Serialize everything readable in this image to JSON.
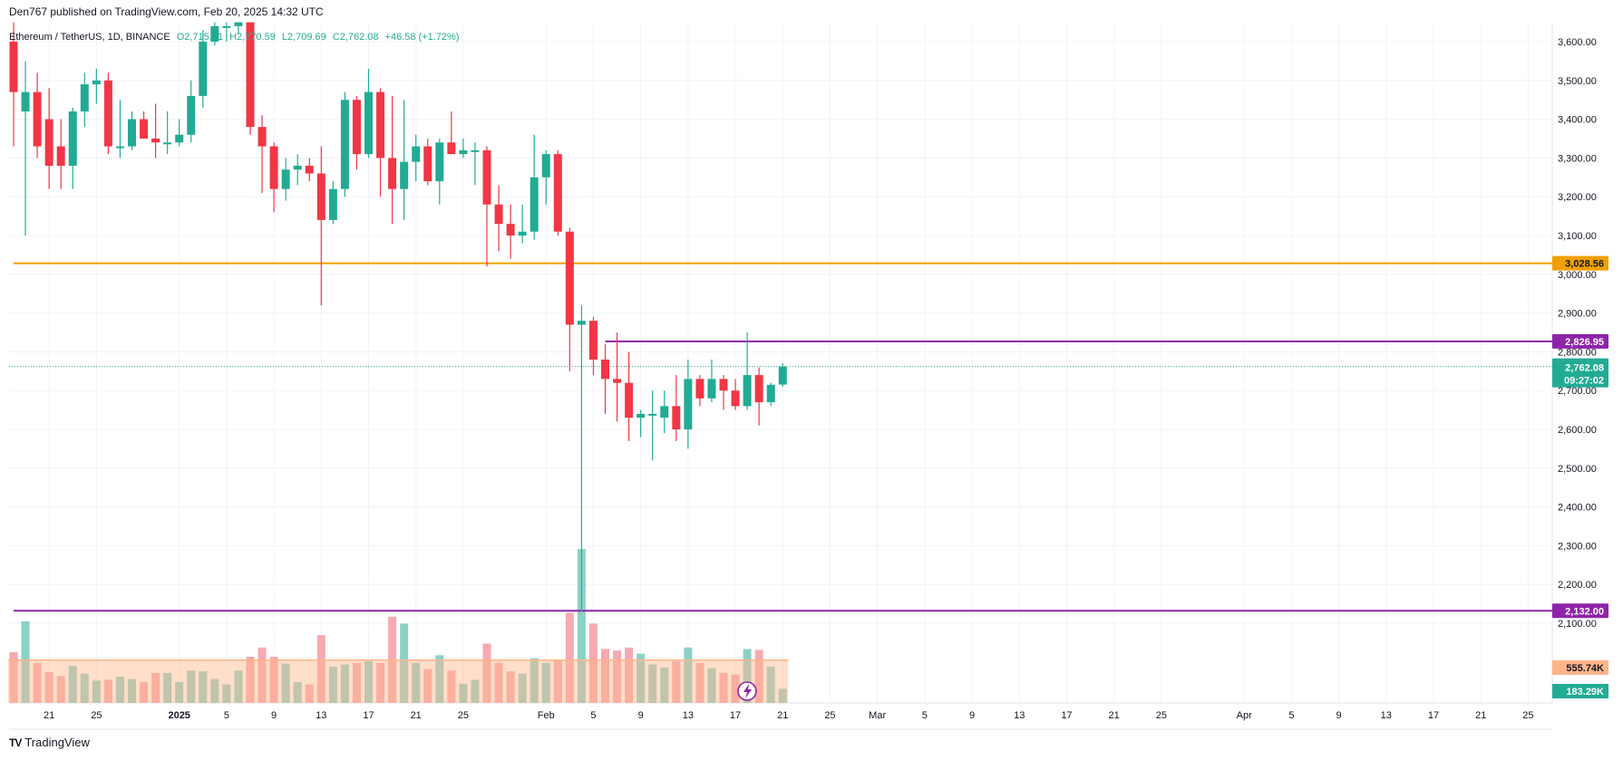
{
  "header": {
    "published": "Den767 published on TradingView.com, Feb 20, 2025 14:32 UTC"
  },
  "legend": {
    "symbol": "Ethereum / TetherUS, 1D, BINANCE",
    "open": "O2,715.51",
    "high": "H2,770.59",
    "low": "L2,709.69",
    "close": "C2,762.08",
    "change": "+46.58 (+1.72%)"
  },
  "footer": {
    "brand_logo": "TV",
    "brand": "TradingView"
  },
  "colors": {
    "up": "#22ab94",
    "down": "#f23645",
    "up_vol": "#7fccc0",
    "down_vol": "#f5a1a8",
    "orange_line": "#f0a000",
    "purple_line": "#8e24aa",
    "vol_ma": "#ffb58a",
    "grid": "#f0f3fa"
  },
  "tags": {
    "orange": "3,028.56",
    "purple_upper": "2,826.95",
    "purple_lower": "2,132.00",
    "last_price": "2,762.08",
    "countdown": "09:27:02",
    "vol_ma": "555.74K",
    "volume": "183.29K"
  },
  "chart_data": {
    "type": "candlestick",
    "y_axis": {
      "min": 2000,
      "max": 3650,
      "position": "right",
      "ticks": [
        2100,
        2200,
        2300,
        2400,
        2500,
        2600,
        2700,
        2800,
        2900,
        3000,
        3100,
        3200,
        3300,
        3400,
        3500,
        3600
      ],
      "tick_labels": [
        "2,100.00",
        "2,200.00",
        "2,300.00",
        "2,400.00",
        "2,500.00",
        "2,600.00",
        "2,700.00",
        "2,800.00",
        "2,900.00",
        "3,000.00",
        "3,100.00",
        "3,200.00",
        "3,300.00",
        "3,400.00",
        "3,500.00",
        "3,600.00"
      ]
    },
    "x_axis": {
      "tick_labels": [
        "21",
        "25",
        "2025",
        "5",
        "9",
        "13",
        "17",
        "21",
        "25",
        "Feb",
        "5",
        "9",
        "13",
        "17",
        "21",
        "25",
        "Mar",
        "5",
        "9",
        "13",
        "17",
        "21",
        "25",
        "Apr",
        "5",
        "9",
        "13",
        "17",
        "21",
        "25"
      ],
      "tick_dates": [
        "2024-12-21",
        "2024-12-25",
        "2025-01-01",
        "2025-01-05",
        "2025-01-09",
        "2025-01-13",
        "2025-01-17",
        "2025-01-21",
        "2025-01-25",
        "2025-02-01",
        "2025-02-05",
        "2025-02-09",
        "2025-02-13",
        "2025-02-17",
        "2025-02-21",
        "2025-02-25",
        "2025-03-01",
        "2025-03-05",
        "2025-03-09",
        "2025-03-13",
        "2025-03-17",
        "2025-03-21",
        "2025-03-25",
        "2025-04-01",
        "2025-04-05",
        "2025-04-09",
        "2025-04-13",
        "2025-04-17",
        "2025-04-21",
        "2025-04-25"
      ]
    },
    "horizontal_lines": [
      {
        "value": 3028.56,
        "color": "#f0a000",
        "from_date": "2024-12-18"
      },
      {
        "value": 2826.95,
        "color": "#8e24aa",
        "from_date": "2025-02-06"
      },
      {
        "value": 2132.0,
        "color": "#8e24aa",
        "from_date": "2024-12-18"
      }
    ],
    "last_price": 2762.08,
    "vol_ma_value": 555.74,
    "candles": [
      {
        "date": "2024-12-18",
        "o": 3600,
        "h": 3650,
        "l": 3330,
        "c": 3470,
        "v": 660
      },
      {
        "date": "2024-12-19",
        "o": 3420,
        "h": 3550,
        "l": 3100,
        "c": 3470,
        "v": 1060
      },
      {
        "date": "2024-12-20",
        "o": 3470,
        "h": 3520,
        "l": 3300,
        "c": 3330,
        "v": 520
      },
      {
        "date": "2024-12-21",
        "o": 3400,
        "h": 3480,
        "l": 3220,
        "c": 3280,
        "v": 400
      },
      {
        "date": "2024-12-22",
        "o": 3330,
        "h": 3400,
        "l": 3220,
        "c": 3280,
        "v": 350
      },
      {
        "date": "2024-12-23",
        "o": 3280,
        "h": 3430,
        "l": 3220,
        "c": 3420,
        "v": 480
      },
      {
        "date": "2024-12-24",
        "o": 3420,
        "h": 3520,
        "l": 3380,
        "c": 3490,
        "v": 380
      },
      {
        "date": "2024-12-25",
        "o": 3490,
        "h": 3530,
        "l": 3440,
        "c": 3500,
        "v": 290
      },
      {
        "date": "2024-12-26",
        "o": 3500,
        "h": 3520,
        "l": 3310,
        "c": 3330,
        "v": 300
      },
      {
        "date": "2024-12-27",
        "o": 3330,
        "h": 3450,
        "l": 3300,
        "c": 3330,
        "v": 340
      },
      {
        "date": "2024-12-28",
        "o": 3330,
        "h": 3420,
        "l": 3320,
        "c": 3400,
        "v": 310
      },
      {
        "date": "2024-12-29",
        "o": 3400,
        "h": 3420,
        "l": 3350,
        "c": 3350,
        "v": 270
      },
      {
        "date": "2024-12-30",
        "o": 3350,
        "h": 3440,
        "l": 3300,
        "c": 3340,
        "v": 390
      },
      {
        "date": "2024-12-31",
        "o": 3340,
        "h": 3420,
        "l": 3310,
        "c": 3340,
        "v": 390
      },
      {
        "date": "2025-01-01",
        "o": 3340,
        "h": 3400,
        "l": 3330,
        "c": 3360,
        "v": 270
      },
      {
        "date": "2025-01-02",
        "o": 3360,
        "h": 3500,
        "l": 3340,
        "c": 3460,
        "v": 420
      },
      {
        "date": "2025-01-03",
        "o": 3460,
        "h": 3630,
        "l": 3430,
        "c": 3600,
        "v": 410
      },
      {
        "date": "2025-01-04",
        "o": 3600,
        "h": 3650,
        "l": 3590,
        "c": 3640,
        "v": 310
      },
      {
        "date": "2025-01-05",
        "o": 3640,
        "h": 3650,
        "l": 3600,
        "c": 3640,
        "v": 240
      },
      {
        "date": "2025-01-06",
        "o": 3640,
        "h": 3650,
        "l": 3620,
        "c": 3650,
        "v": 420
      },
      {
        "date": "2025-01-07",
        "o": 3650,
        "h": 3650,
        "l": 3360,
        "c": 3380,
        "v": 600
      },
      {
        "date": "2025-01-08",
        "o": 3380,
        "h": 3410,
        "l": 3210,
        "c": 3330,
        "v": 720
      },
      {
        "date": "2025-01-09",
        "o": 3330,
        "h": 3340,
        "l": 3160,
        "c": 3220,
        "v": 600
      },
      {
        "date": "2025-01-10",
        "o": 3220,
        "h": 3300,
        "l": 3190,
        "c": 3270,
        "v": 510
      },
      {
        "date": "2025-01-11",
        "o": 3270,
        "h": 3310,
        "l": 3230,
        "c": 3280,
        "v": 270
      },
      {
        "date": "2025-01-12",
        "o": 3280,
        "h": 3300,
        "l": 3240,
        "c": 3260,
        "v": 240
      },
      {
        "date": "2025-01-13",
        "o": 3260,
        "h": 3330,
        "l": 2920,
        "c": 3140,
        "v": 880
      },
      {
        "date": "2025-01-14",
        "o": 3140,
        "h": 3240,
        "l": 3130,
        "c": 3220,
        "v": 470
      },
      {
        "date": "2025-01-15",
        "o": 3220,
        "h": 3470,
        "l": 3200,
        "c": 3450,
        "v": 500
      },
      {
        "date": "2025-01-16",
        "o": 3450,
        "h": 3460,
        "l": 3270,
        "c": 3310,
        "v": 520
      },
      {
        "date": "2025-01-17",
        "o": 3310,
        "h": 3530,
        "l": 3300,
        "c": 3470,
        "v": 540
      },
      {
        "date": "2025-01-18",
        "o": 3470,
        "h": 3480,
        "l": 3200,
        "c": 3300,
        "v": 520
      },
      {
        "date": "2025-01-19",
        "o": 3300,
        "h": 3460,
        "l": 3130,
        "c": 3220,
        "v": 1120
      },
      {
        "date": "2025-01-20",
        "o": 3220,
        "h": 3450,
        "l": 3140,
        "c": 3290,
        "v": 1030
      },
      {
        "date": "2025-01-21",
        "o": 3290,
        "h": 3360,
        "l": 3240,
        "c": 3330,
        "v": 520
      },
      {
        "date": "2025-01-22",
        "o": 3330,
        "h": 3350,
        "l": 3230,
        "c": 3240,
        "v": 440
      },
      {
        "date": "2025-01-23",
        "o": 3240,
        "h": 3350,
        "l": 3180,
        "c": 3340,
        "v": 620
      },
      {
        "date": "2025-01-24",
        "o": 3340,
        "h": 3420,
        "l": 3310,
        "c": 3310,
        "v": 420
      },
      {
        "date": "2025-01-25",
        "o": 3310,
        "h": 3350,
        "l": 3300,
        "c": 3320,
        "v": 250
      },
      {
        "date": "2025-01-26",
        "o": 3320,
        "h": 3340,
        "l": 3230,
        "c": 3320,
        "v": 300
      },
      {
        "date": "2025-01-27",
        "o": 3320,
        "h": 3330,
        "l": 3020,
        "c": 3180,
        "v": 770
      },
      {
        "date": "2025-01-28",
        "o": 3180,
        "h": 3230,
        "l": 3060,
        "c": 3130,
        "v": 520
      },
      {
        "date": "2025-01-29",
        "o": 3130,
        "h": 3180,
        "l": 3040,
        "c": 3100,
        "v": 410
      },
      {
        "date": "2025-01-30",
        "o": 3100,
        "h": 3180,
        "l": 3080,
        "c": 3110,
        "v": 380
      },
      {
        "date": "2025-01-31",
        "o": 3110,
        "h": 3360,
        "l": 3090,
        "c": 3250,
        "v": 580
      },
      {
        "date": "2025-02-01",
        "o": 3250,
        "h": 3320,
        "l": 3180,
        "c": 3310,
        "v": 520
      },
      {
        "date": "2025-02-02",
        "o": 3310,
        "h": 3320,
        "l": 3100,
        "c": 3110,
        "v": 560
      },
      {
        "date": "2025-02-03",
        "o": 3110,
        "h": 3120,
        "l": 2750,
        "c": 2870,
        "v": 1170
      },
      {
        "date": "2025-02-04",
        "o": 2870,
        "h": 2920,
        "l": 2130,
        "c": 2880,
        "v": 2000
      },
      {
        "date": "2025-02-05",
        "o": 2880,
        "h": 2890,
        "l": 2740,
        "c": 2780,
        "v": 1030
      },
      {
        "date": "2025-02-06",
        "o": 2780,
        "h": 2820,
        "l": 2640,
        "c": 2730,
        "v": 700
      },
      {
        "date": "2025-02-07",
        "o": 2730,
        "h": 2850,
        "l": 2620,
        "c": 2720,
        "v": 680
      },
      {
        "date": "2025-02-08",
        "o": 2720,
        "h": 2800,
        "l": 2570,
        "c": 2630,
        "v": 720
      },
      {
        "date": "2025-02-09",
        "o": 2630,
        "h": 2650,
        "l": 2580,
        "c": 2640,
        "v": 640
      },
      {
        "date": "2025-02-10",
        "o": 2640,
        "h": 2700,
        "l": 2520,
        "c": 2640,
        "v": 500
      },
      {
        "date": "2025-02-11",
        "o": 2630,
        "h": 2700,
        "l": 2590,
        "c": 2660,
        "v": 460
      },
      {
        "date": "2025-02-12",
        "o": 2660,
        "h": 2740,
        "l": 2570,
        "c": 2600,
        "v": 540
      },
      {
        "date": "2025-02-13",
        "o": 2600,
        "h": 2780,
        "l": 2550,
        "c": 2730,
        "v": 720
      },
      {
        "date": "2025-02-14",
        "o": 2730,
        "h": 2740,
        "l": 2660,
        "c": 2680,
        "v": 520
      },
      {
        "date": "2025-02-15",
        "o": 2680,
        "h": 2780,
        "l": 2670,
        "c": 2730,
        "v": 450
      },
      {
        "date": "2025-02-16",
        "o": 2730,
        "h": 2740,
        "l": 2650,
        "c": 2700,
        "v": 390
      },
      {
        "date": "2025-02-17",
        "o": 2700,
        "h": 2730,
        "l": 2650,
        "c": 2660,
        "v": 370
      },
      {
        "date": "2025-02-18",
        "o": 2660,
        "h": 2850,
        "l": 2650,
        "c": 2740,
        "v": 700
      },
      {
        "date": "2025-02-19",
        "o": 2740,
        "h": 2760,
        "l": 2610,
        "c": 2670,
        "v": 690
      },
      {
        "date": "2025-02-20",
        "o": 2670,
        "h": 2720,
        "l": 2660,
        "c": 2715,
        "v": 470
      },
      {
        "date": "2025-02-21",
        "o": 2715.51,
        "h": 2770.59,
        "l": 2709.69,
        "c": 2762.08,
        "v": 183
      }
    ]
  }
}
